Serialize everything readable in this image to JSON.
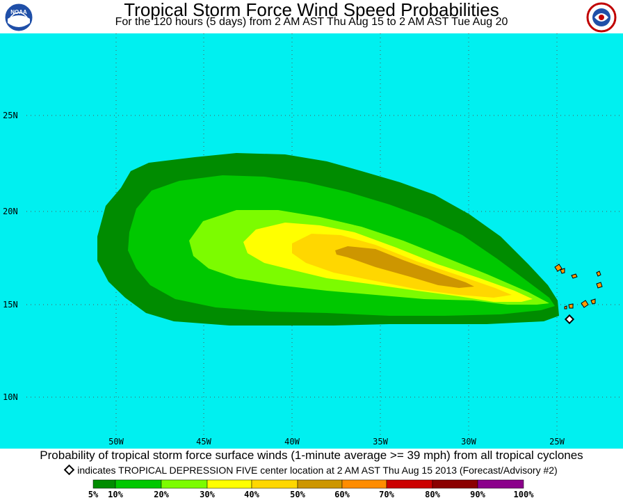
{
  "header": {
    "title": "Tropical Storm Force Wind Speed Probabilities",
    "subtitle": "For the 120 hours (5 days) from 2 AM AST Thu Aug 15 to 2 AM AST Tue Aug 20",
    "left_logo_icon": "noaa-logo",
    "left_logo_text": "NOAA",
    "right_logo_icon": "nws-logo"
  },
  "map": {
    "ocean_color": "#00f0f0",
    "latitude_labels": [
      "25N",
      "20N",
      "15N",
      "10N"
    ],
    "longitude_labels": [
      "50W",
      "45W",
      "40W",
      "35W",
      "30W",
      "25W"
    ],
    "storm_marker_icon": "diamond-icon",
    "probability_colors": {
      "5": "#008c00",
      "10": "#00c800",
      "20": "#7cfc00",
      "30": "#ffff00",
      "40": "#ffd700",
      "50": "#cd9600"
    },
    "land_color": "#ff9a00"
  },
  "footer": {
    "caption": "Probability of tropical storm force surface winds (1-minute average >= 39 mph) from all tropical cyclones",
    "marker_note": "indicates TROPICAL DEPRESSION FIVE center location at 2 AM AST Thu Aug 15 2013 (Forecast/Advisory #2)"
  },
  "legend": {
    "colors": [
      "#008c00",
      "#00c800",
      "#7cfc00",
      "#ffff00",
      "#ffd700",
      "#cd9600",
      "#ff8c00",
      "#cc0000",
      "#8b0000",
      "#8b008b"
    ],
    "labels": [
      "5%",
      "10%",
      "20%",
      "30%",
      "40%",
      "50%",
      "60%",
      "70%",
      "80%",
      "90%",
      "100%"
    ]
  }
}
